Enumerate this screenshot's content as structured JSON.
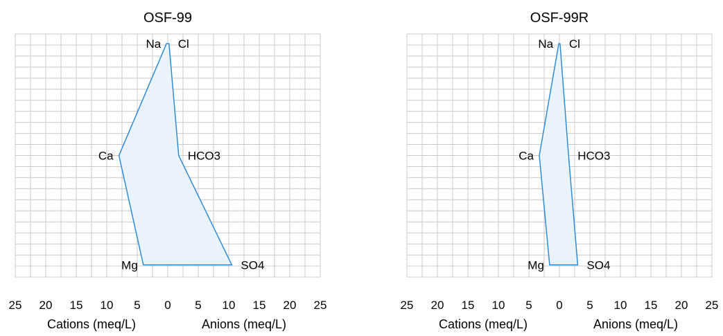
{
  "chart_data": [
    {
      "type": "stiff",
      "title": "OSF-99",
      "xlabel_left": "Cations (meq/L)",
      "xlabel_right": "Anions (meq/L)",
      "x_ticks": [
        "25",
        "20",
        "15",
        "10",
        "5",
        "0",
        "5",
        "10",
        "15",
        "20",
        "25"
      ],
      "xlim": [
        -25,
        25
      ],
      "grid": true,
      "cations": [
        {
          "label": "Na",
          "value": 0.2
        },
        {
          "label": "Ca",
          "value": 8.0
        },
        {
          "label": "Mg",
          "value": 4.0
        }
      ],
      "anions": [
        {
          "label": "Cl",
          "value": 0.2
        },
        {
          "label": "HCO3",
          "value": 1.8
        },
        {
          "label": "SO4",
          "value": 10.5
        }
      ]
    },
    {
      "type": "stiff",
      "title": "OSF-99R",
      "xlabel_left": "Cations (meq/L)",
      "xlabel_right": "Anions (meq/L)",
      "x_ticks": [
        "25",
        "20",
        "15",
        "10",
        "5",
        "0",
        "5",
        "10",
        "15",
        "20",
        "25"
      ],
      "xlim": [
        -25,
        25
      ],
      "grid": true,
      "cations": [
        {
          "label": "Na",
          "value": 0.1
        },
        {
          "label": "Ca",
          "value": 3.3
        },
        {
          "label": "Mg",
          "value": 1.6
        }
      ],
      "anions": [
        {
          "label": "Cl",
          "value": 0.1
        },
        {
          "label": "HCO3",
          "value": 1.5
        },
        {
          "label": "SO4",
          "value": 3.0
        }
      ]
    }
  ],
  "style": {
    "polygon_fill": "#eaf3fa",
    "polygon_stroke": "#2e8bd8",
    "grid_color": "#c8c8c8"
  }
}
